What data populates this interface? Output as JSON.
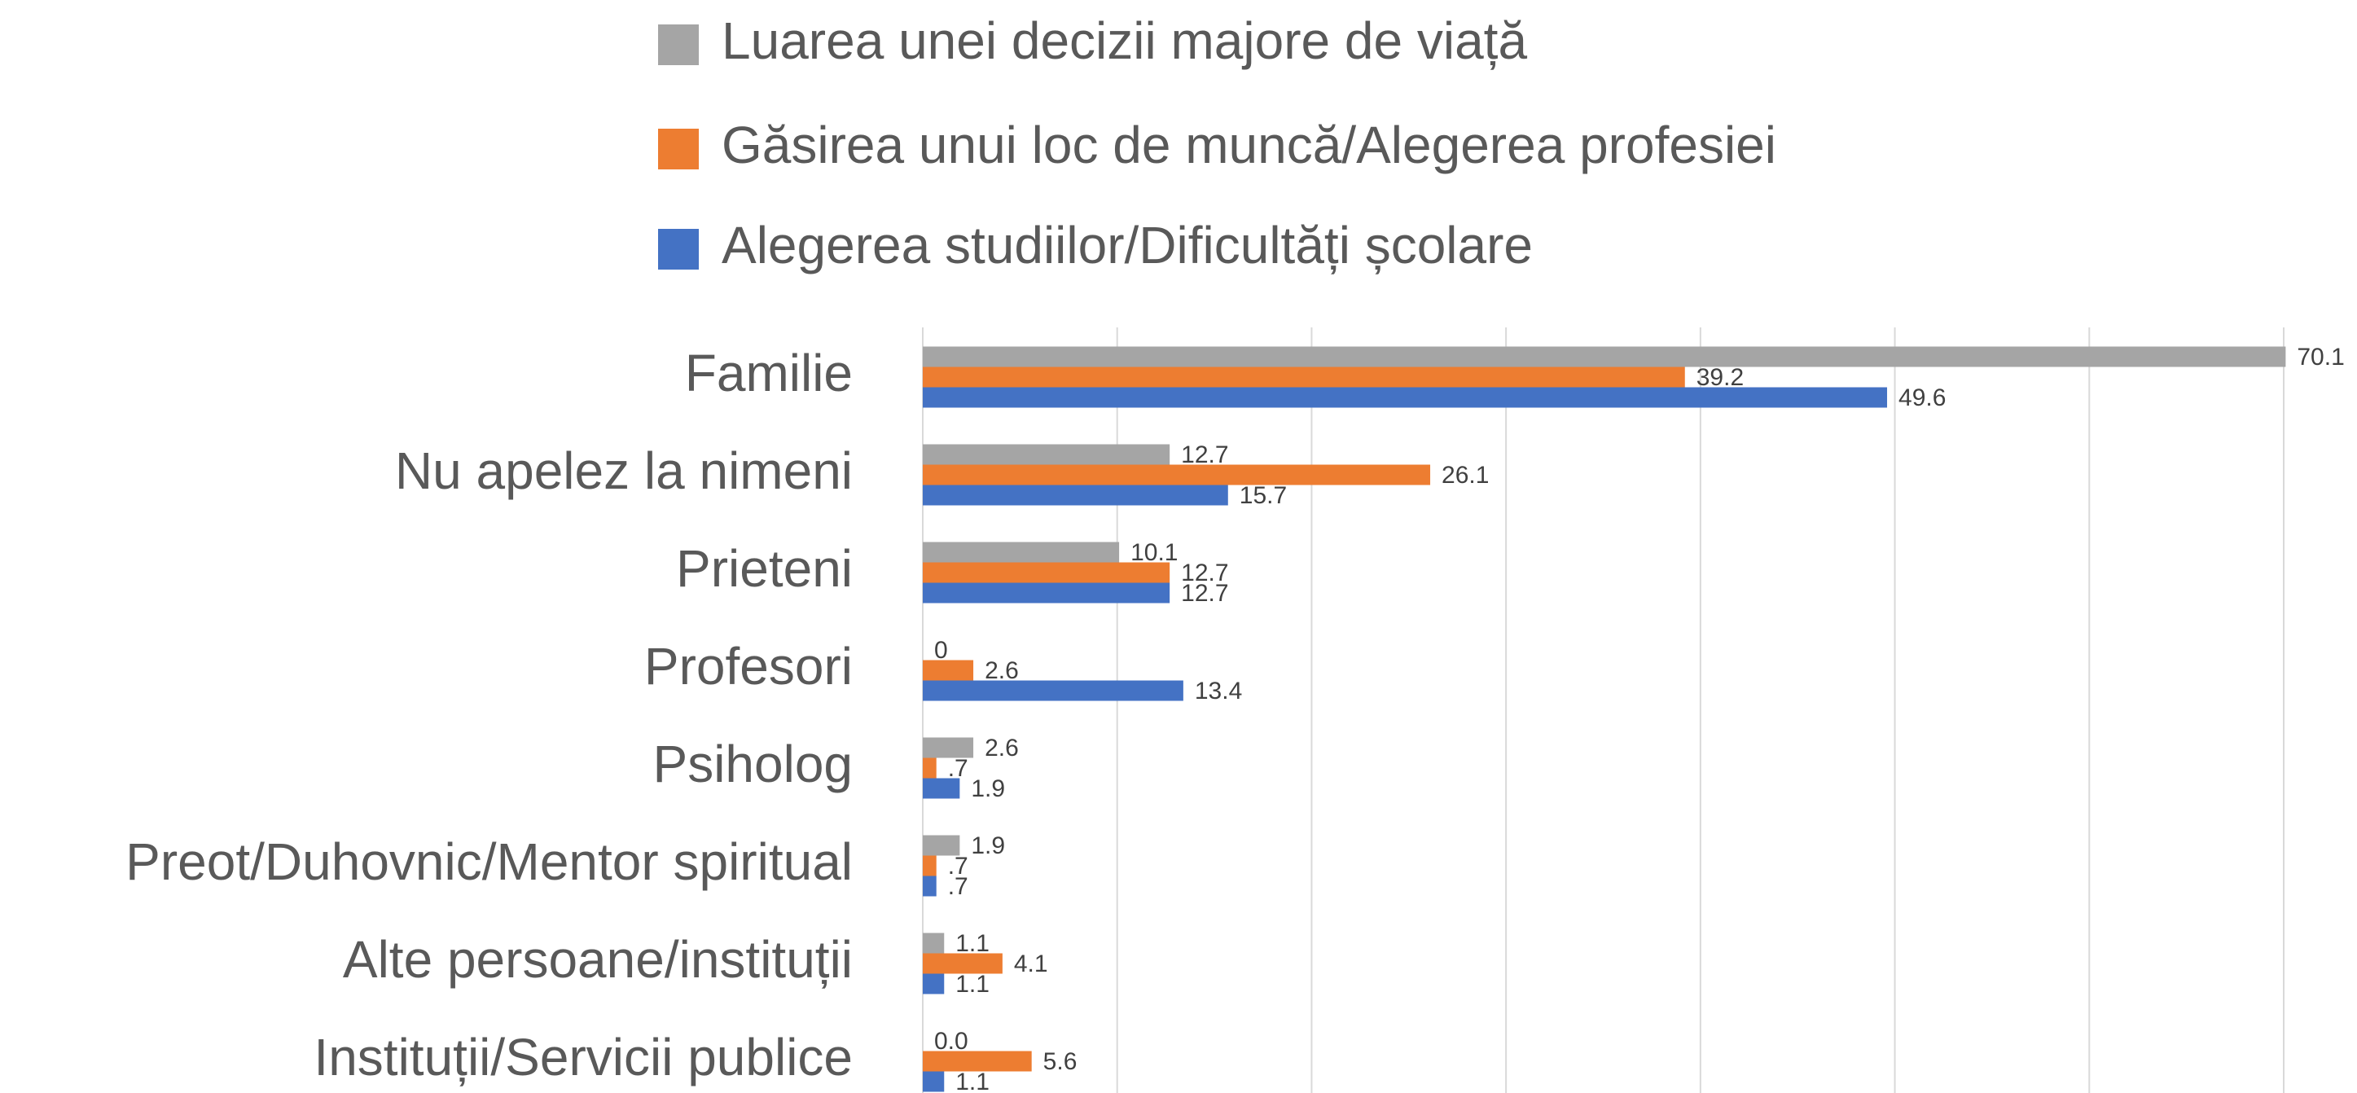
{
  "chart_data": {
    "type": "bar",
    "orientation": "horizontal",
    "categories": [
      "Familie",
      "Nu apelez la nimeni",
      "Prieteni",
      "Profesori",
      "Psiholog",
      "Preot/Duhovnic/Mentor spiritual",
      "Alte persoane/instituții",
      "Instituții/Servicii publice"
    ],
    "series": [
      {
        "name": "Luarea unei decizii majore de viață",
        "color": "#a5a5a5",
        "values": [
          70.1,
          12.7,
          10.1,
          0,
          2.6,
          1.9,
          1.1,
          0.0
        ],
        "value_labels": [
          "70.1",
          "12.7",
          "10.1",
          "0",
          "2.6",
          "1.9",
          "1.1",
          "0.0"
        ]
      },
      {
        "name": "Găsirea unui loc de muncă/Alegerea profesiei",
        "color": "#ed7d31",
        "values": [
          39.2,
          26.1,
          12.7,
          2.6,
          0.7,
          0.7,
          4.1,
          5.6
        ],
        "value_labels": [
          "39.2",
          "26.1",
          "12.7",
          "2.6",
          ".7",
          ".7",
          "4.1",
          "5.6"
        ]
      },
      {
        "name": "Alegerea studiilor/Dificultăți școlare",
        "color": "#4472c4",
        "values": [
          49.6,
          15.7,
          12.7,
          13.4,
          1.9,
          0.7,
          1.1,
          1.1
        ],
        "value_labels": [
          "49.6",
          "15.7",
          "12.7",
          "13.4",
          "1.9",
          ".7",
          "1.1",
          "1.1"
        ]
      }
    ],
    "xlim": [
      0,
      70
    ],
    "xticks": [
      0,
      10,
      20,
      30,
      40,
      50,
      60,
      70
    ],
    "grid": true,
    "legend": "top"
  }
}
